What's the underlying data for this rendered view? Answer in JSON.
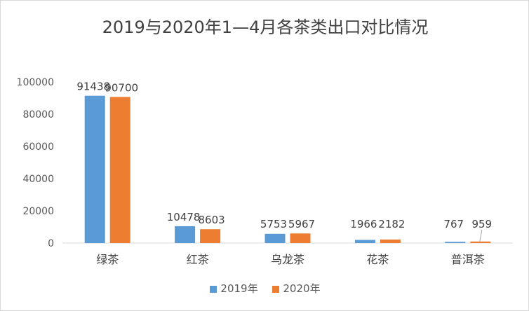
{
  "chart_data": {
    "type": "bar",
    "title": "2019与2020年1—4月各茶类出口对比情况",
    "categories": [
      "绿茶",
      "红茶",
      "乌龙茶",
      "花茶",
      "普洱茶"
    ],
    "series": [
      {
        "name": "2019年",
        "values": [
          91438,
          10478,
          5753,
          1966,
          767
        ],
        "color": "#5b9bd5"
      },
      {
        "name": "2020年",
        "values": [
          90700,
          8603,
          5967,
          2182,
          959
        ],
        "color": "#ed7d31"
      }
    ],
    "ylim": [
      0,
      100000
    ],
    "yticks": [
      "0",
      "20000",
      "40000",
      "60000",
      "80000",
      "100000"
    ],
    "xlabel": "",
    "ylabel": "",
    "legend_position": "bottom",
    "grid": false
  }
}
